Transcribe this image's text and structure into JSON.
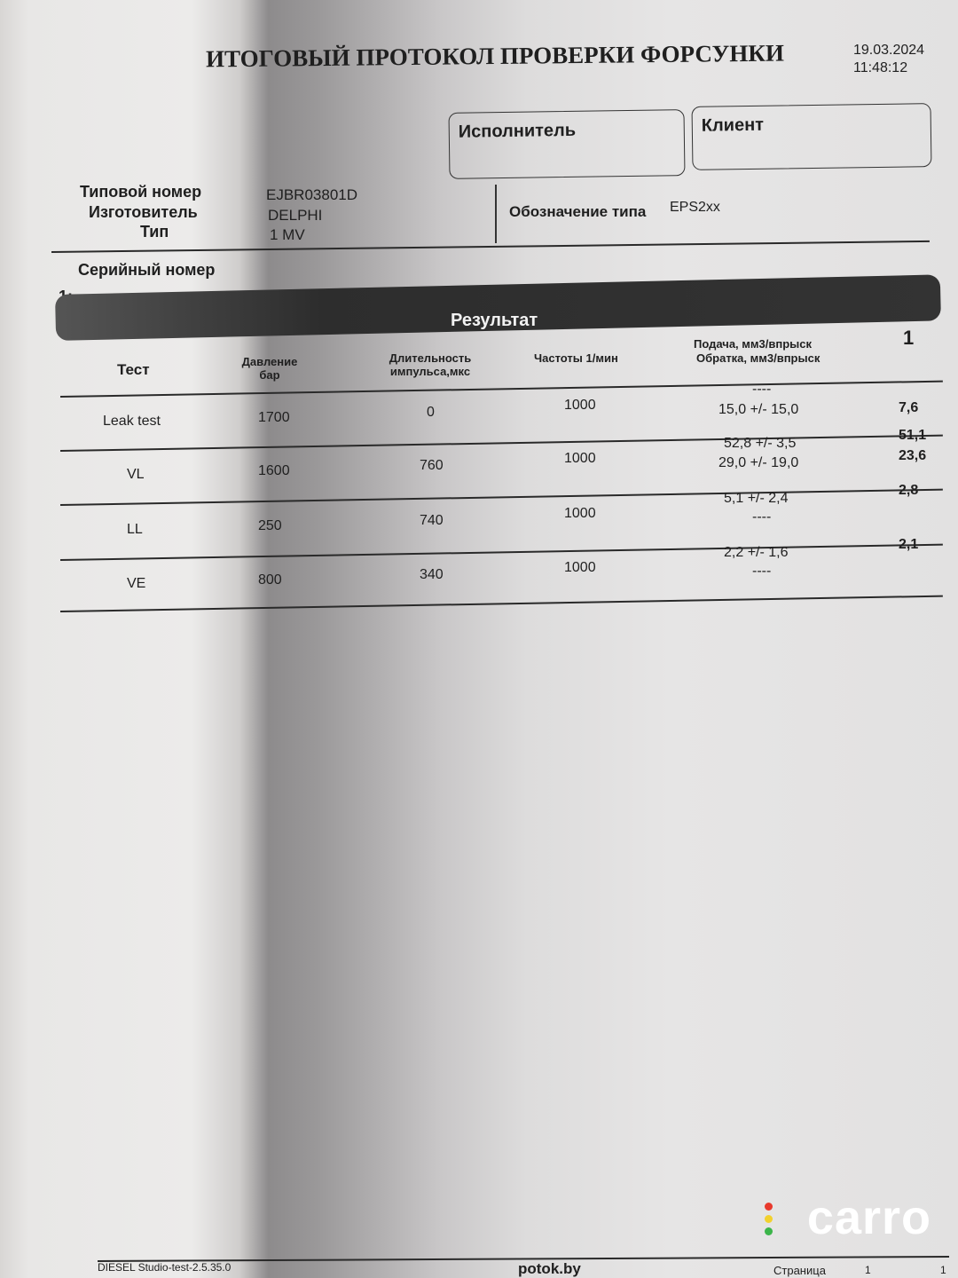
{
  "header": {
    "title": "ИТОГОВЫЙ ПРОТОКОЛ ПРОВЕРКИ ФОРСУНКИ",
    "date": "19.03.2024",
    "time": "11:48:12"
  },
  "boxes": {
    "executor": "Исполнитель",
    "client": "Клиент"
  },
  "info": {
    "type_number_label": "Типовой номер",
    "type_number": "EJBR03801D",
    "manufacturer_label": "Изготовитель",
    "manufacturer": "DELPHI",
    "type_label": "Тип",
    "type": "1 MV",
    "designation_label": "Обозначение типа",
    "designation": "EPS2xx",
    "serial_label": "Серийный номер",
    "serial_index": "1:",
    "serial_value": "1"
  },
  "result": {
    "title": "Результат",
    "column_index": "1",
    "headers": {
      "test": "Тест",
      "pressure": "Давление бар",
      "duration": "Длительность импульса,мкс",
      "frequency": "Частоты 1/мин",
      "delivery": "Подача, мм3/впрыск",
      "return": "Обратка, мм3/впрыск"
    },
    "rows": [
      {
        "test": "Leak test",
        "pressure": "1700",
        "duration": "0",
        "frequency": "1000",
        "delivery_spec": "----",
        "return_spec": "15,0 +/- 15,0",
        "delivery_val": "",
        "return_val": "7,6"
      },
      {
        "test": "VL",
        "pressure": "1600",
        "duration": "760",
        "frequency": "1000",
        "delivery_spec": "52,8 +/- 3,5",
        "return_spec": "29,0 +/- 19,0",
        "delivery_val": "51,1",
        "return_val": "23,6"
      },
      {
        "test": "LL",
        "pressure": "250",
        "duration": "740",
        "frequency": "1000",
        "delivery_spec": "5,1 +/- 2,4",
        "return_spec": "----",
        "delivery_val": "2,8",
        "return_val": ""
      },
      {
        "test": "VE",
        "pressure": "800",
        "duration": "340",
        "frequency": "1000",
        "delivery_spec": "2,2 +/- 1,6",
        "return_spec": "----",
        "delivery_val": "2,1",
        "return_val": ""
      }
    ]
  },
  "footer": {
    "software": "DIESEL Studio-test-2.5.35.0",
    "site": "potok.by",
    "page_label": "Страница",
    "page": "1",
    "pages": "1"
  },
  "watermark": {
    "text": "carro",
    "dot_colors": [
      "#e8392c",
      "#f2d12e",
      "#3bb54a"
    ]
  }
}
